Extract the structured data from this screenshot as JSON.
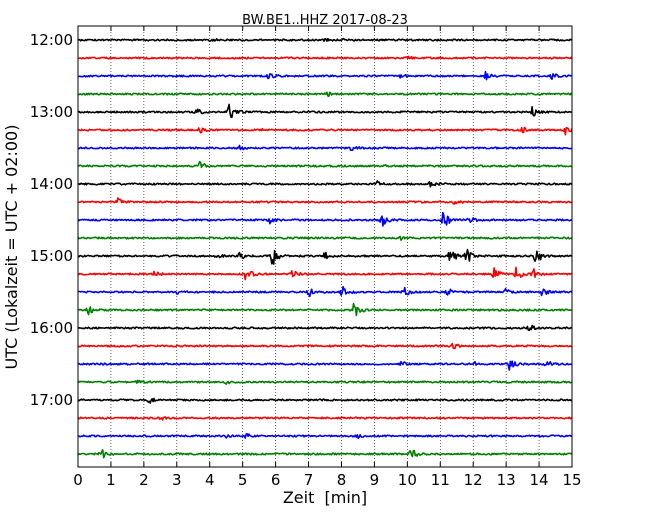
{
  "chart_data": {
    "type": "line",
    "title": "BW.BE1..HHZ 2017-08-23",
    "xlabel": "Zeit  [min]",
    "ylabel": "UTC (Lokalzeit = UTC + 02:00)",
    "xlim": [
      0,
      15
    ],
    "x_ticks": [
      "0",
      "1",
      "2",
      "3",
      "4",
      "5",
      "6",
      "7",
      "8",
      "9",
      "10",
      "11",
      "12",
      "13",
      "14",
      "15"
    ],
    "y_tick_labels": [
      "12:00",
      "13:00",
      "14:00",
      "15:00",
      "16:00",
      "17:00"
    ],
    "grid": "vertical dotted",
    "colors": [
      "#000000",
      "#ff0000",
      "#0000ff",
      "#008000"
    ],
    "traces": [
      {
        "start": "12:00",
        "events": [
          {
            "t": 4.0,
            "amp": 0.2
          },
          {
            "t": 7.5,
            "amp": 0.15
          },
          {
            "t": 8.0,
            "amp": 0.15
          }
        ]
      },
      {
        "start": "12:15",
        "events": [
          {
            "t": 10.0,
            "amp": 0.15
          }
        ]
      },
      {
        "start": "12:30",
        "events": [
          {
            "t": 5.8,
            "amp": 0.3
          },
          {
            "t": 9.8,
            "amp": 0.2
          },
          {
            "t": 12.4,
            "amp": 0.5
          },
          {
            "t": 14.4,
            "amp": 0.4
          }
        ]
      },
      {
        "start": "12:45",
        "events": [
          {
            "t": 7.5,
            "amp": 0.45
          }
        ]
      },
      {
        "start": "13:00",
        "events": [
          {
            "t": 3.6,
            "amp": 0.35
          },
          {
            "t": 4.6,
            "amp": 1.0
          },
          {
            "t": 13.8,
            "amp": 0.5
          }
        ]
      },
      {
        "start": "13:15",
        "events": [
          {
            "t": 3.7,
            "amp": 0.25
          },
          {
            "t": 5.5,
            "amp": 0.15
          },
          {
            "t": 13.5,
            "amp": 0.3
          },
          {
            "t": 14.8,
            "amp": 0.5
          }
        ]
      },
      {
        "start": "13:30",
        "events": [
          {
            "t": 4.9,
            "amp": 0.2
          },
          {
            "t": 8.3,
            "amp": 0.2
          }
        ]
      },
      {
        "start": "13:45",
        "events": [
          {
            "t": 3.7,
            "amp": 0.5
          },
          {
            "t": 9.3,
            "amp": 0.15
          }
        ]
      },
      {
        "start": "14:00",
        "events": [
          {
            "t": 9.1,
            "amp": 0.3
          },
          {
            "t": 10.7,
            "amp": 0.35
          }
        ]
      },
      {
        "start": "14:15",
        "events": [
          {
            "t": 1.2,
            "amp": 0.35
          },
          {
            "t": 11.4,
            "amp": 0.2
          }
        ]
      },
      {
        "start": "14:30",
        "events": [
          {
            "t": 5.8,
            "amp": 0.5
          },
          {
            "t": 9.2,
            "amp": 0.9
          },
          {
            "t": 11.1,
            "amp": 1.1
          },
          {
            "t": 11.8,
            "amp": 0.8
          }
        ]
      },
      {
        "start": "14:45",
        "events": [
          {
            "t": 9.8,
            "amp": 0.15
          }
        ]
      },
      {
        "start": "15:00",
        "events": [
          {
            "t": 4.2,
            "amp": 0.35
          },
          {
            "t": 4.9,
            "amp": 0.5
          },
          {
            "t": 5.9,
            "amp": 1.1
          },
          {
            "t": 7.5,
            "amp": 0.4
          },
          {
            "t": 11.3,
            "amp": 1.0
          },
          {
            "t": 11.8,
            "amp": 0.9
          },
          {
            "t": 13.9,
            "amp": 1.0
          }
        ]
      },
      {
        "start": "15:15",
        "events": [
          {
            "t": 2.3,
            "amp": 0.3
          },
          {
            "t": 5.1,
            "amp": 0.9
          },
          {
            "t": 6.5,
            "amp": 0.4
          },
          {
            "t": 12.6,
            "amp": 0.8
          },
          {
            "t": 13.3,
            "amp": 0.9
          },
          {
            "t": 13.8,
            "amp": 0.6
          }
        ]
      },
      {
        "start": "15:30",
        "events": [
          {
            "t": 3.0,
            "amp": 0.3
          },
          {
            "t": 7.0,
            "amp": 0.5
          },
          {
            "t": 8.0,
            "amp": 0.7
          },
          {
            "t": 9.9,
            "amp": 0.5
          },
          {
            "t": 11.2,
            "amp": 0.5
          },
          {
            "t": 13.0,
            "amp": 0.4
          },
          {
            "t": 14.1,
            "amp": 0.4
          }
        ]
      },
      {
        "start": "15:45",
        "events": [
          {
            "t": 0.3,
            "amp": 0.45
          },
          {
            "t": 8.4,
            "amp": 1.0
          }
        ]
      },
      {
        "start": "16:00",
        "events": [
          {
            "t": 13.7,
            "amp": 0.45
          }
        ]
      },
      {
        "start": "16:15",
        "events": [
          {
            "t": 11.4,
            "amp": 0.35
          }
        ]
      },
      {
        "start": "16:30",
        "events": [
          {
            "t": 9.8,
            "amp": 0.3
          },
          {
            "t": 12.0,
            "amp": 0.35
          },
          {
            "t": 13.1,
            "amp": 0.9
          },
          {
            "t": 14.2,
            "amp": 0.5
          }
        ]
      },
      {
        "start": "16:45",
        "events": [
          {
            "t": 1.8,
            "amp": 0.2
          },
          {
            "t": 4.5,
            "amp": 0.15
          }
        ]
      },
      {
        "start": "17:00",
        "events": [
          {
            "t": 2.1,
            "amp": 0.55
          }
        ]
      },
      {
        "start": "17:15",
        "events": [
          {
            "t": 2.5,
            "amp": 0.35
          }
        ]
      },
      {
        "start": "17:30",
        "events": [
          {
            "t": 4.5,
            "amp": 0.15
          },
          {
            "t": 5.1,
            "amp": 0.25
          },
          {
            "t": 8.5,
            "amp": 0.25
          }
        ]
      },
      {
        "start": "17:45",
        "events": [
          {
            "t": 0.7,
            "amp": 0.7
          },
          {
            "t": 10.1,
            "amp": 0.7
          }
        ]
      }
    ]
  }
}
